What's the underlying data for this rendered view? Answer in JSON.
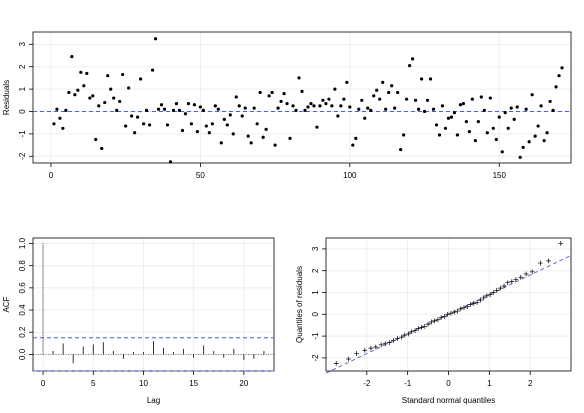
{
  "chart_data": [
    {
      "type": "scatter",
      "title": "",
      "xlabel": "",
      "ylabel": "Residuals",
      "xlim": [
        -6,
        174
      ],
      "ylim": [
        -2.3,
        3.55
      ],
      "xticks": [
        0,
        50,
        100,
        150
      ],
      "yticks": [
        -2,
        -1,
        0,
        1,
        2,
        3
      ],
      "grid": true,
      "reference_line": {
        "y": 0,
        "style": "dashed",
        "color": "#4f5fd9"
      },
      "series": [
        {
          "values": [
            -0.55,
            0.1,
            -0.3,
            -0.75,
            0.05,
            0.85,
            2.45,
            0.75,
            0.95,
            1.75,
            1.15,
            1.7,
            0.6,
            0.7,
            -1.25,
            0.25,
            -1.65,
            0.4,
            1.6,
            1.0,
            0.6,
            0.05,
            0.45,
            1.65,
            -0.65,
            1.05,
            -0.2,
            -0.95,
            -0.25,
            1.45,
            -0.55,
            0.05,
            -0.6,
            1.85,
            3.25,
            0.1,
            0.3,
            0.1,
            -0.6,
            -2.25,
            0.05,
            0.35,
            0.05,
            -0.85,
            -0.1,
            0.35,
            -0.55,
            0.3,
            -0.9,
            0.2,
            0.05,
            -0.65,
            -0.95,
            -0.55,
            0.25,
            0.1,
            -1.4,
            -0.35,
            -0.6,
            -0.15,
            -1.0,
            0.65,
            0.25,
            -0.2,
            0.15,
            -1.1,
            -1.4,
            0.15,
            -0.55,
            0.85,
            -1.15,
            -0.8,
            0.7,
            0.85,
            -1.5,
            0.15,
            0.45,
            0.8,
            0.35,
            -1.2,
            0.25,
            0.05,
            1.5,
            0.9,
            0.05,
            0.2,
            0.35,
            0.25,
            -0.7,
            0.25,
            0.5,
            0.35,
            0.55,
            0.25,
            1.0,
            -0.2,
            0.25,
            0.55,
            1.3,
            0.2,
            -1.5,
            -1.2,
            0.1,
            0.5,
            -0.3,
            0.15,
            0.05,
            0.7,
            0.95,
            0.55,
            1.3,
            0.1,
            0.85,
            1.15,
            0.15,
            0.85,
            -1.7,
            -1.05,
            0.55,
            2.05,
            2.35,
            0.5,
            0.1,
            1.45,
            0.0,
            0.5,
            1.45,
            0.1,
            -0.6,
            -1.05,
            0.25,
            -0.75,
            -0.3,
            -0.25,
            -0.05,
            -1.05,
            0.3,
            0.35,
            -0.45,
            -0.9,
            0.55,
            -1.3,
            -0.45,
            0.65,
            0.05,
            -0.95,
            0.6,
            -0.75,
            -1.25,
            -0.25,
            -1.8,
            -0.05,
            -0.75,
            0.15,
            -0.35,
            0.2,
            -2.05,
            -1.6,
            0.1,
            -1.35,
            0.75,
            -1.1,
            -0.65,
            0.25,
            -1.3,
            -0.95,
            0.45,
            0.05,
            1.1,
            1.6,
            1.95
          ]
        }
      ]
    },
    {
      "type": "bar",
      "title": "",
      "xlabel": "Lag",
      "ylabel": "ACF",
      "xlim": [
        -1,
        23
      ],
      "ylim": [
        -0.15,
        1.05
      ],
      "xticks": [
        0,
        5,
        10,
        15,
        20
      ],
      "yticks": [
        0.0,
        0.2,
        0.4,
        0.6,
        0.8,
        1.0
      ],
      "grid": true,
      "confidence_bounds": [
        0.15,
        -0.15
      ],
      "categories": [
        0,
        1,
        2,
        3,
        4,
        5,
        6,
        7,
        8,
        9,
        10,
        11,
        12,
        13,
        14,
        15,
        16,
        17,
        18,
        19,
        20,
        21,
        22
      ],
      "values": [
        1.0,
        0.03,
        0.1,
        -0.08,
        0.07,
        0.09,
        0.11,
        0.03,
        -0.04,
        0.02,
        0.02,
        0.12,
        0.06,
        0.02,
        0.05,
        -0.03,
        0.08,
        0.03,
        -0.03,
        0.05,
        -0.05,
        -0.04,
        0.03
      ]
    },
    {
      "type": "scatter",
      "title": "",
      "xlabel": "Standard normal quantiles",
      "ylabel": "Quantiles of residuals",
      "xlim": [
        -3,
        3
      ],
      "ylim": [
        -2.6,
        3.5
      ],
      "xticks": [
        -2,
        -1,
        0,
        1,
        2
      ],
      "yticks": [
        -2,
        -1,
        0,
        1,
        2,
        3
      ],
      "grid": true,
      "reference_line": {
        "slope": 0.9,
        "intercept": 0.0,
        "style": "dashed",
        "color": "#4f5fd9"
      },
      "marker": "+",
      "series": [
        {
          "x": [
            -2.75,
            -2.45,
            -2.25,
            -2.05,
            -1.9,
            -1.78,
            -1.65,
            -1.55,
            -1.45,
            -1.35,
            -1.25,
            -1.15,
            -1.07,
            -0.98,
            -0.9,
            -0.82,
            -0.74,
            -0.66,
            -0.58,
            -0.5,
            -0.42,
            -0.34,
            -0.26,
            -0.18,
            -0.1,
            -0.02,
            0.06,
            0.14,
            0.22,
            0.3,
            0.38,
            0.46,
            0.54,
            0.62,
            0.7,
            0.78,
            0.86,
            0.94,
            1.02,
            1.1,
            1.18,
            1.27,
            1.36,
            1.45,
            1.55,
            1.65,
            1.77,
            1.9,
            2.05,
            2.25,
            2.45,
            2.75
          ],
          "y": [
            -2.25,
            -2.05,
            -1.8,
            -1.65,
            -1.55,
            -1.5,
            -1.4,
            -1.35,
            -1.3,
            -1.2,
            -1.1,
            -1.05,
            -0.95,
            -0.9,
            -0.8,
            -0.75,
            -0.65,
            -0.6,
            -0.55,
            -0.45,
            -0.35,
            -0.3,
            -0.25,
            -0.15,
            -0.1,
            0.0,
            0.05,
            0.1,
            0.15,
            0.25,
            0.3,
            0.35,
            0.45,
            0.5,
            0.55,
            0.65,
            0.75,
            0.85,
            0.9,
            1.0,
            1.1,
            1.2,
            1.3,
            1.45,
            1.5,
            1.6,
            1.7,
            1.85,
            1.95,
            2.35,
            2.45,
            3.25
          ]
        }
      ]
    }
  ]
}
